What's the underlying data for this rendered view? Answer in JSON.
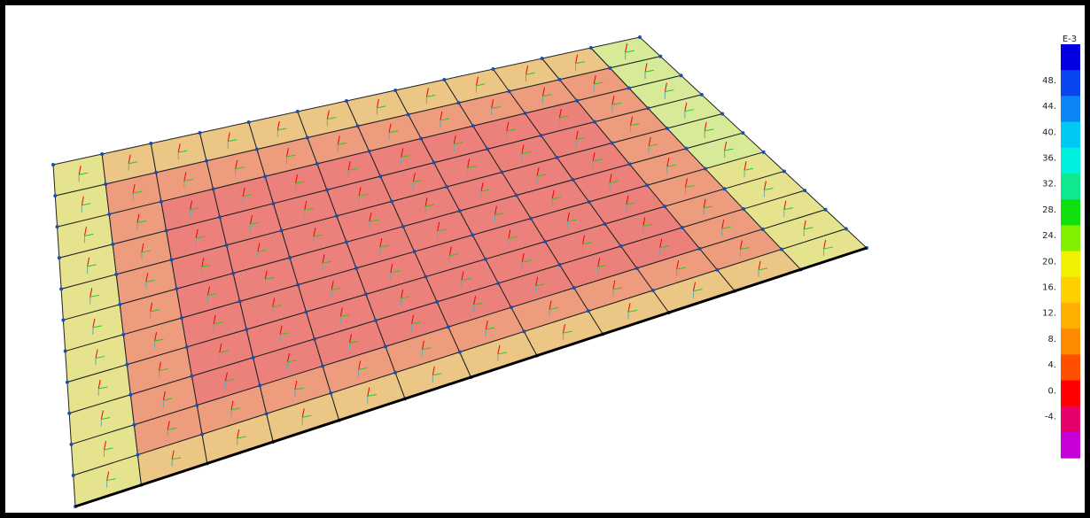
{
  "legend": {
    "title": "E-3",
    "labels": [
      "48.",
      "44.",
      "40.",
      "36.",
      "32.",
      "28.",
      "24.",
      "20.",
      "16.",
      "12.",
      "8.",
      "4.",
      "0.",
      "-4."
    ]
  }
}
